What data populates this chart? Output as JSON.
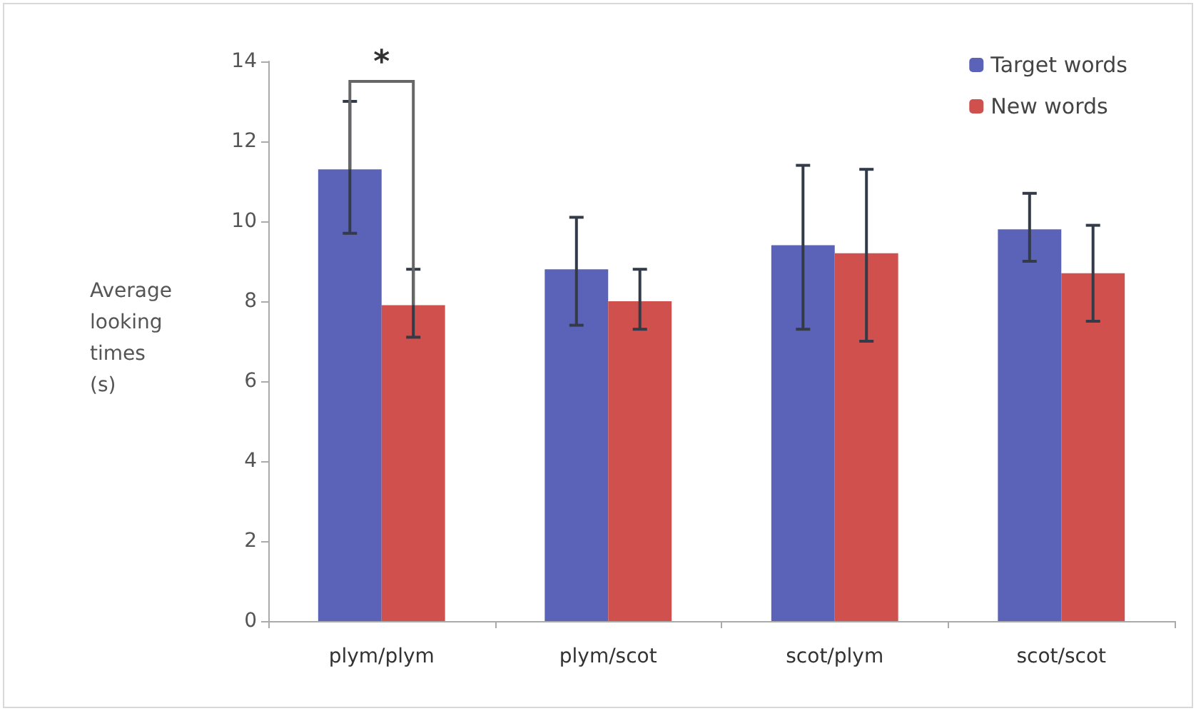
{
  "chart_data": {
    "type": "bar",
    "ylabel": "Average\nlooking\ntimes\n(s)",
    "categories": [
      "plym/plym",
      "plym/scot",
      "scot/plym",
      "scot/scot"
    ],
    "series": [
      {
        "name": "Target words",
        "color": "#5b63b8",
        "values": [
          11.3,
          8.8,
          9.4,
          9.8
        ],
        "errors": [
          [
            9.7,
            13.0
          ],
          [
            7.4,
            10.1
          ],
          [
            7.3,
            11.4
          ],
          [
            9.0,
            10.7
          ]
        ]
      },
      {
        "name": "New words",
        "color": "#d0504d",
        "values": [
          7.9,
          8.0,
          9.2,
          8.7
        ],
        "errors": [
          [
            7.1,
            8.8
          ],
          [
            7.3,
            8.8
          ],
          [
            7.0,
            11.3
          ],
          [
            7.5,
            9.9
          ]
        ]
      }
    ],
    "ylim": [
      0,
      14
    ],
    "yticks": [
      0,
      2,
      4,
      6,
      8,
      10,
      12,
      14
    ],
    "grid": false,
    "legend": "top right",
    "annotations": [
      "*"
    ]
  }
}
